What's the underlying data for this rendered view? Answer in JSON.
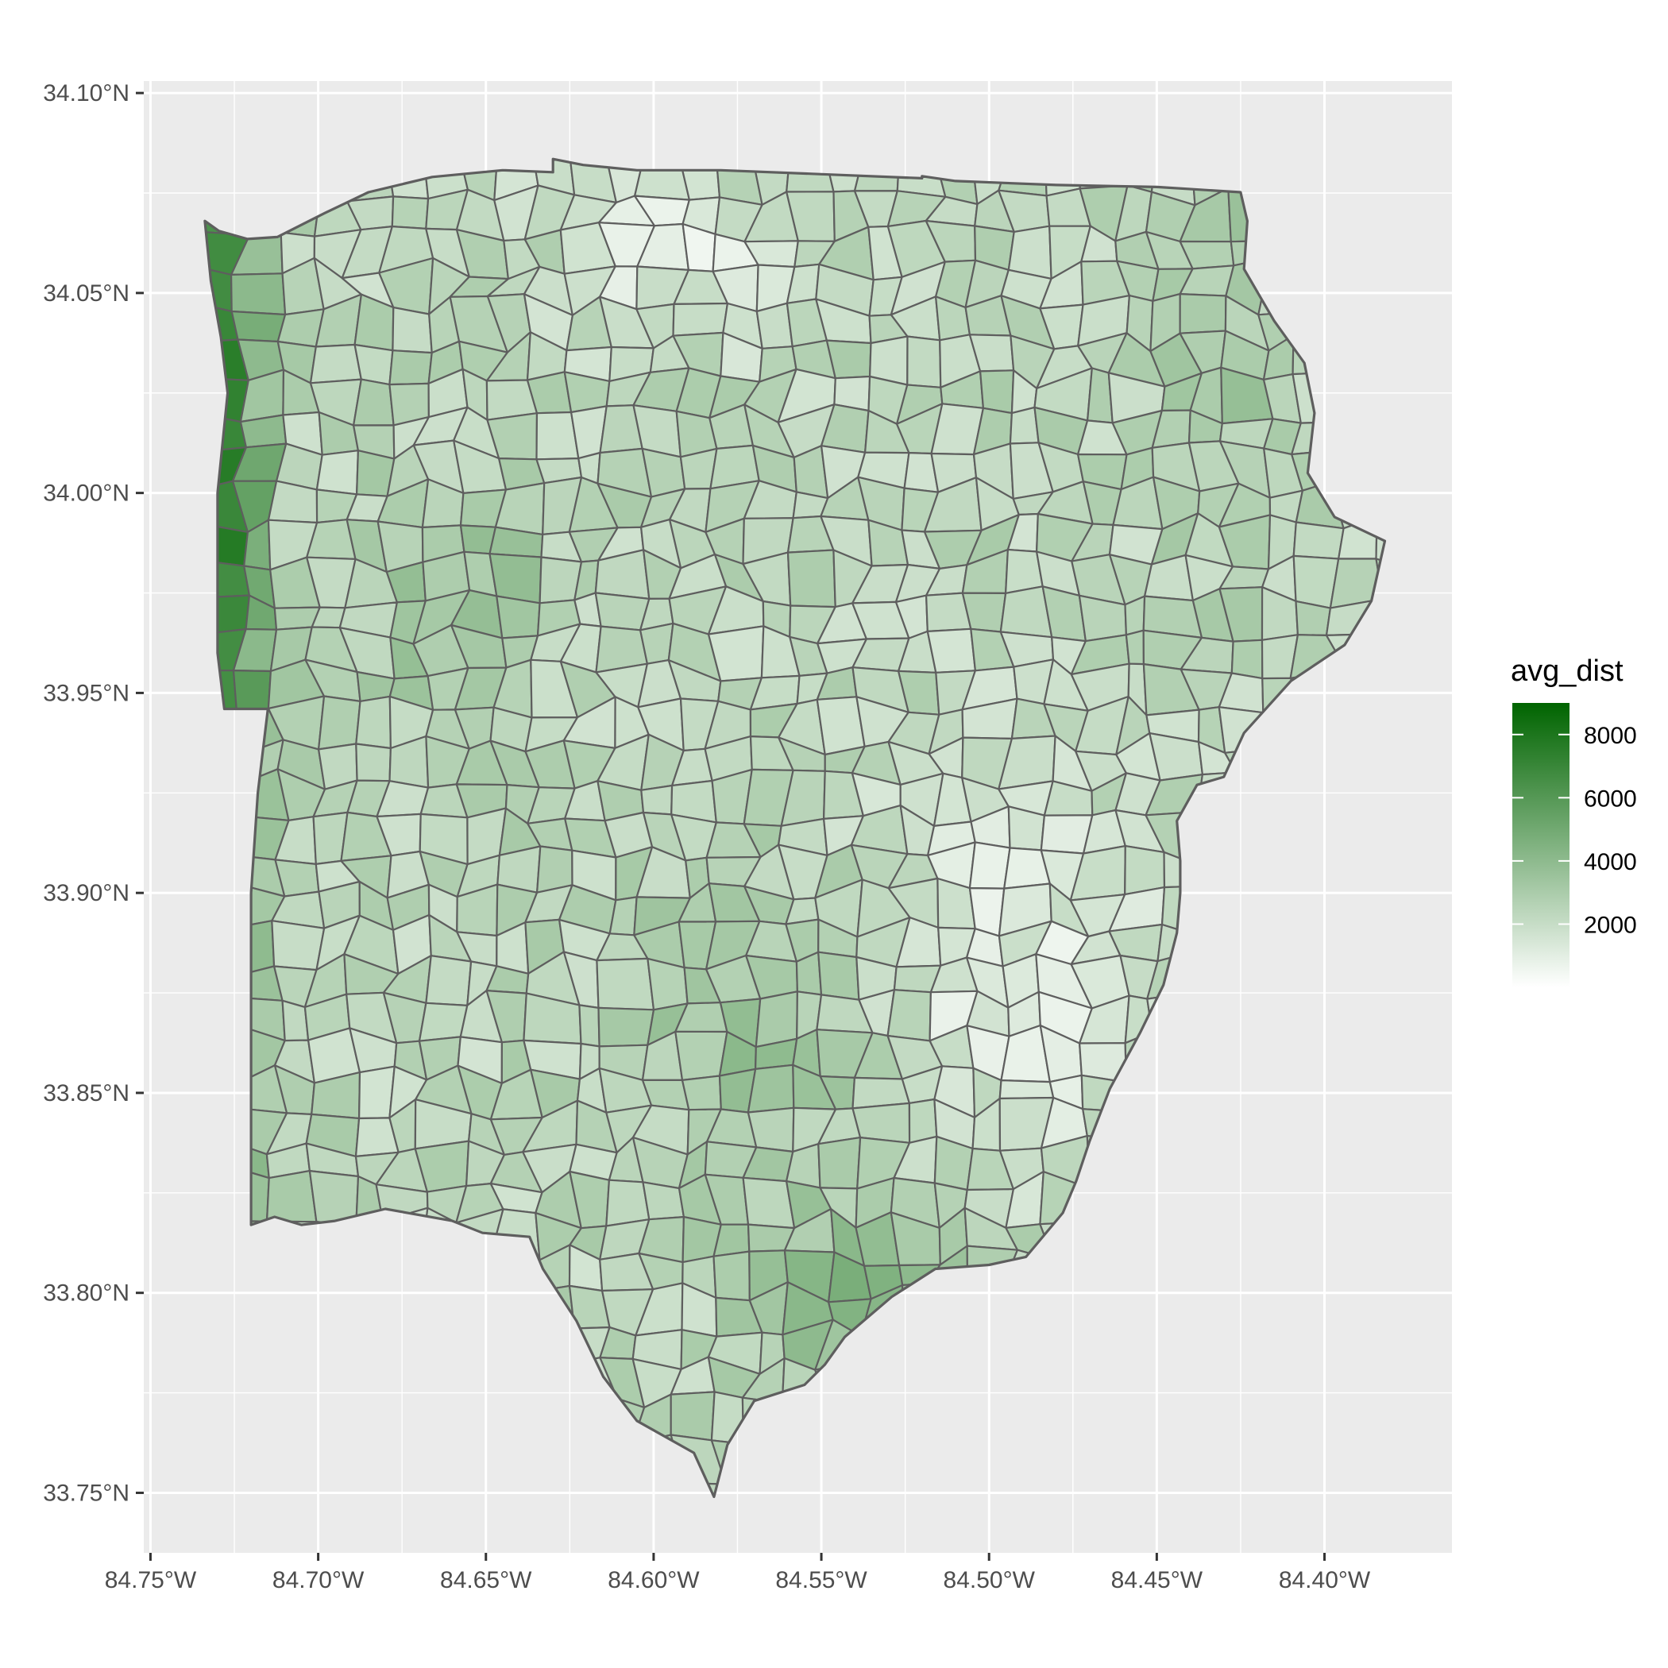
{
  "chart_data": {
    "type": "choropleth",
    "fill_variable": "avg_dist",
    "x_range": [
      -84.752,
      -84.362
    ],
    "y_range": [
      33.735,
      34.103
    ],
    "x_ticks": [
      {
        "value": -84.75,
        "label": "84.75°W"
      },
      {
        "value": -84.7,
        "label": "84.70°W"
      },
      {
        "value": -84.65,
        "label": "84.65°W"
      },
      {
        "value": -84.6,
        "label": "84.60°W"
      },
      {
        "value": -84.55,
        "label": "84.55°W"
      },
      {
        "value": -84.5,
        "label": "84.50°W"
      },
      {
        "value": -84.45,
        "label": "84.45°W"
      },
      {
        "value": -84.4,
        "label": "84.40°W"
      }
    ],
    "y_ticks": [
      {
        "value": 33.75,
        "label": "33.75°N"
      },
      {
        "value": 33.8,
        "label": "33.80°N"
      },
      {
        "value": 33.85,
        "label": "33.85°N"
      },
      {
        "value": 33.9,
        "label": "33.90°N"
      },
      {
        "value": 33.95,
        "label": "33.95°N"
      },
      {
        "value": 34.0,
        "label": "34.00°N"
      },
      {
        "value": 34.05,
        "label": "34.05°N"
      },
      {
        "value": 34.1,
        "label": "34.10°N"
      }
    ],
    "legend": {
      "title": "avg_dist",
      "position": "right",
      "range": [
        0,
        9000
      ],
      "breaks": [
        {
          "value": 8000,
          "label": "8000"
        },
        {
          "value": 6000,
          "label": "6000"
        },
        {
          "value": 4000,
          "label": "4000"
        },
        {
          "value": 2000,
          "label": "2000"
        }
      ],
      "low_color": "#ffffff",
      "high_color": "#006400"
    },
    "grid": true,
    "panel_background": "#ebebeb",
    "gridline_color": "#ffffff",
    "border_color": "#5e5e5e",
    "outline": [
      [
        -84.7338,
        34.068
      ],
      [
        -84.7296,
        34.0655
      ],
      [
        -84.7211,
        34.0635
      ],
      [
        -84.7122,
        34.064
      ],
      [
        -84.698,
        34.07
      ],
      [
        -84.685,
        34.0752
      ],
      [
        -84.666,
        34.079
      ],
      [
        -84.645,
        34.0807
      ],
      [
        -84.63,
        34.0802
      ],
      [
        -84.63,
        34.0835
      ],
      [
        -84.621,
        34.082
      ],
      [
        -84.605,
        34.0807
      ],
      [
        -84.58,
        34.0807
      ],
      [
        -84.55,
        34.0797
      ],
      [
        -84.52,
        34.0787
      ],
      [
        -84.52,
        34.0792
      ],
      [
        -84.51,
        34.078
      ],
      [
        -84.48,
        34.077
      ],
      [
        -84.45,
        34.0765
      ],
      [
        -84.425,
        34.0752
      ],
      [
        -84.423,
        34.068
      ],
      [
        -84.424,
        34.056
      ],
      [
        -84.415,
        34.043
      ],
      [
        -84.406,
        34.0325
      ],
      [
        -84.403,
        34.02
      ],
      [
        -84.405,
        34.005
      ],
      [
        -84.397,
        33.994
      ],
      [
        -84.382,
        33.988
      ],
      [
        -84.386,
        33.973
      ],
      [
        -84.394,
        33.962
      ],
      [
        -84.41,
        33.953
      ],
      [
        -84.424,
        33.94
      ],
      [
        -84.43,
        33.929
      ],
      [
        -84.438,
        33.927
      ],
      [
        -84.444,
        33.918
      ],
      [
        -84.443,
        33.908
      ],
      [
        -84.443,
        33.9
      ],
      [
        -84.444,
        33.89
      ],
      [
        -84.448,
        33.877
      ],
      [
        -84.455,
        33.865
      ],
      [
        -84.464,
        33.851
      ],
      [
        -84.47,
        33.838
      ],
      [
        -84.474,
        33.828
      ],
      [
        -84.478,
        33.82
      ],
      [
        -84.489,
        33.809
      ],
      [
        -84.5,
        33.807
      ],
      [
        -84.516,
        33.806
      ],
      [
        -84.529,
        33.799
      ],
      [
        -84.543,
        33.789
      ],
      [
        -84.549,
        33.782
      ],
      [
        -84.555,
        33.777
      ],
      [
        -84.57,
        33.773
      ],
      [
        -84.578,
        33.762
      ],
      [
        -84.582,
        33.749
      ],
      [
        -84.588,
        33.76
      ],
      [
        -84.605,
        33.768
      ],
      [
        -84.615,
        33.779
      ],
      [
        -84.623,
        33.793
      ],
      [
        -84.633,
        33.806
      ],
      [
        -84.637,
        33.814
      ],
      [
        -84.651,
        33.815
      ],
      [
        -84.66,
        33.818
      ],
      [
        -84.68,
        33.821
      ],
      [
        -84.695,
        33.818
      ],
      [
        -84.705,
        33.817
      ],
      [
        -84.713,
        33.819
      ],
      [
        -84.72,
        33.817
      ],
      [
        -84.72,
        33.839
      ],
      [
        -84.72,
        33.87
      ],
      [
        -84.72,
        33.9
      ],
      [
        -84.718,
        33.925
      ],
      [
        -84.715,
        33.946
      ],
      [
        -84.728,
        33.946
      ],
      [
        -84.73,
        33.96
      ],
      [
        -84.73,
        34.0
      ],
      [
        -84.727,
        34.025
      ],
      [
        -84.729,
        34.039
      ],
      [
        -84.732,
        34.053
      ]
    ]
  }
}
